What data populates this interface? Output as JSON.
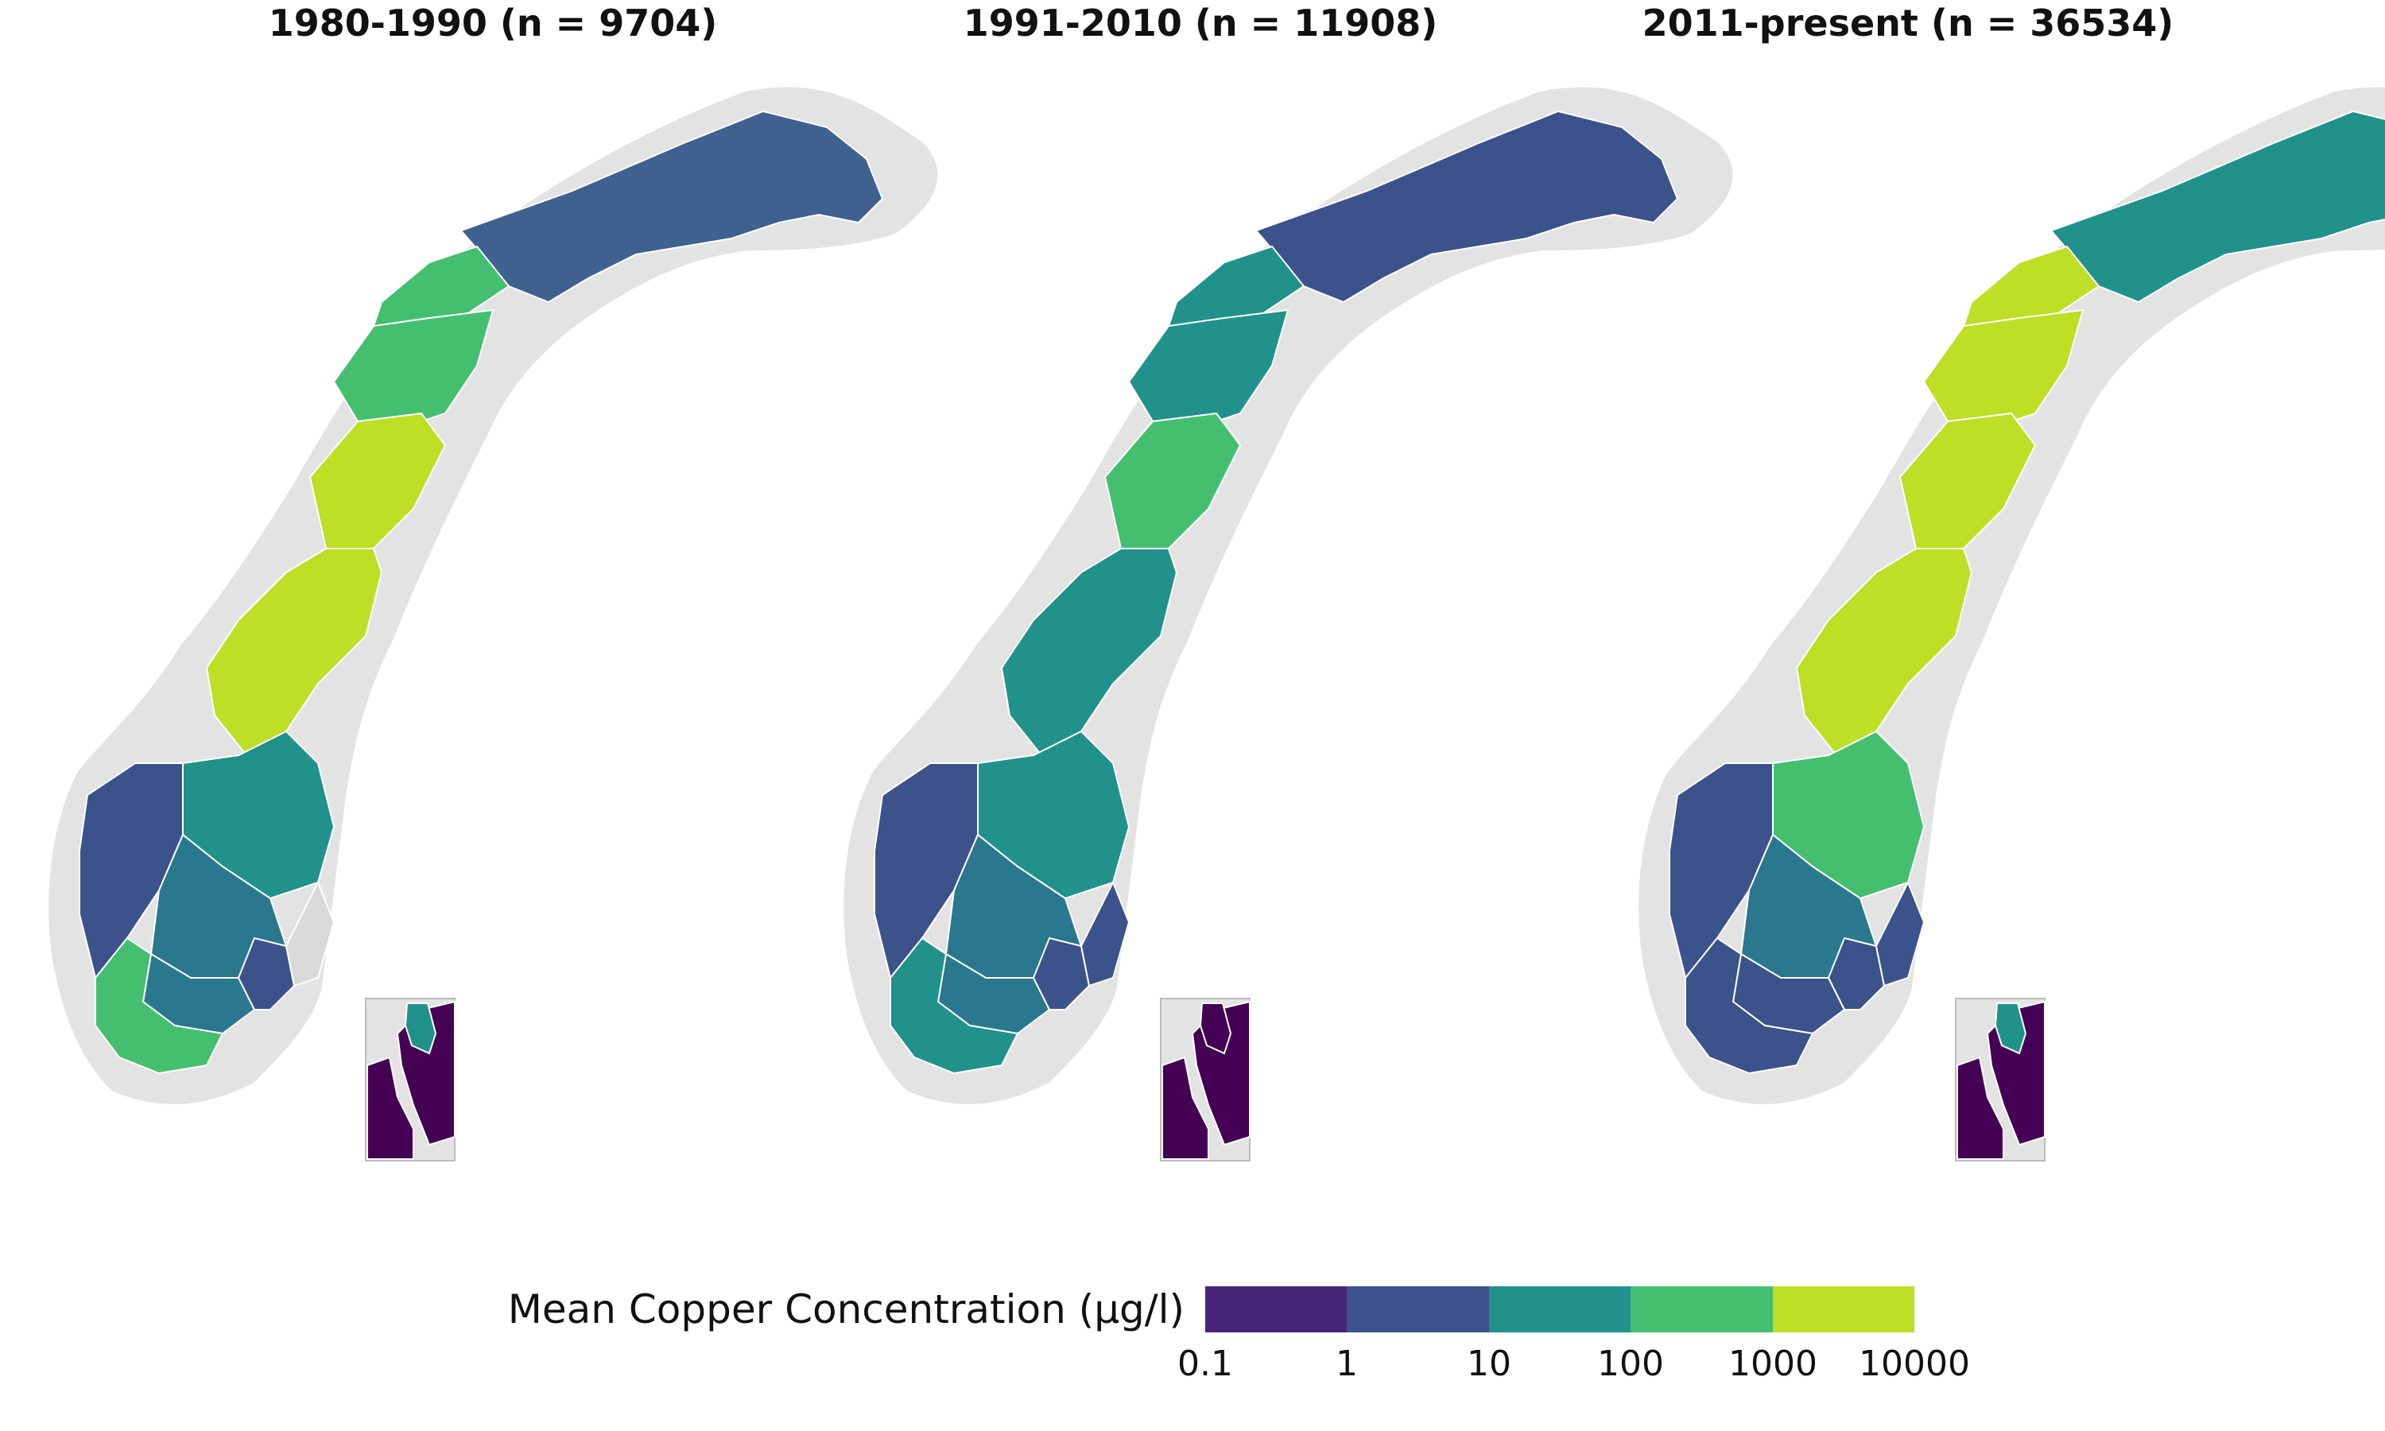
{
  "panels": [
    {
      "title": "1980-1990 (n = 9704)",
      "colors": [
        "#3e6190",
        "#44bf70",
        "#44bf70",
        "#bddf26",
        "#bddf26",
        "#3b528b",
        "#21918c",
        "#2a788e",
        "#2a788e",
        "#44bf70",
        "#3b528b",
        "#d9d9d9"
      ],
      "inset": [
        "#440154",
        "#21918c"
      ]
    },
    {
      "title": "1991-2010 (n = 11908)",
      "colors": [
        "#3b528b",
        "#21918c",
        "#21918c",
        "#44bf70",
        "#21918c",
        "#3b528b",
        "#21918c",
        "#2a788e",
        "#2a788e",
        "#21918c",
        "#3b528b",
        "#3b528b"
      ],
      "inset": [
        "#440154",
        "#440154"
      ]
    },
    {
      "title": "2011-present (n = 36534)",
      "colors": [
        "#21918c",
        "#bddf26",
        "#bddf26",
        "#bddf26",
        "#bddf26",
        "#3b528b",
        "#44bf70",
        "#2a788e",
        "#3b528b",
        "#3b528b",
        "#3b528b",
        "#3b528b"
      ],
      "inset": [
        "#440154",
        "#21918c"
      ]
    }
  ],
  "legend": {
    "title": "Mean Copper Concentration (μg/l)",
    "colors": [
      "#482677",
      "#3b528b",
      "#21918c",
      "#44bf70",
      "#bddf26"
    ],
    "ticks": [
      "0.1",
      "1",
      "10",
      "100",
      "1000",
      "10000"
    ]
  },
  "map_style": {
    "land": "#e3e3e3",
    "border": "#ffffff",
    "missing_border": "#7f7f7f"
  }
}
